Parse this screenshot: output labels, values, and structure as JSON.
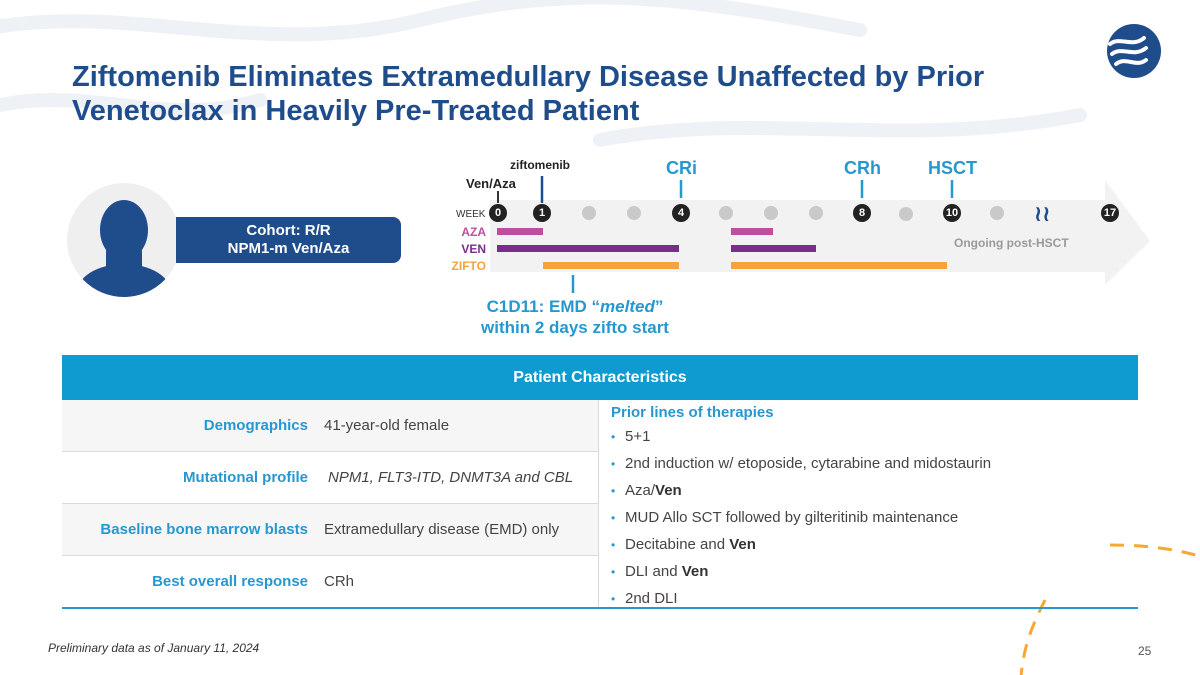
{
  "slide": {
    "title": "Ziftomenib Eliminates Extramedullary Disease Unaffected by Prior Venetoclax in Heavily Pre-Treated Patient",
    "cohort_line1": "Cohort: R/R",
    "cohort_line2": "NPM1-m Ven/Aza",
    "footnote": "Preliminary data as of January 11, 2024",
    "page_number": "25"
  },
  "timeline": {
    "week_label": "WEEK",
    "weeks": [
      "0",
      "1",
      "4",
      "8",
      "10",
      "17"
    ],
    "events": {
      "ziftomenib": "ziftomenib",
      "ven_aza": "Ven/Aza",
      "cri": "CRi",
      "crh": "CRh",
      "hsct": "HSCT"
    },
    "drugs": {
      "aza": "AZA",
      "ven": "VEN",
      "zifto": "ZIFTO"
    },
    "ongoing": "Ongoing post-HSCT",
    "emd_line1_prefix": "C1D11: EMD “",
    "emd_line1_em": "melted",
    "emd_line1_suffix": "”",
    "emd_line2": "within 2 days zifto start",
    "colors": {
      "aza": "#c04e9f",
      "ven": "#7b2d8e",
      "zifto": "#f5a33a",
      "accent": "#2798cf",
      "title": "#1f4d8c"
    }
  },
  "table": {
    "header": "Patient Characteristics",
    "rows": [
      {
        "key": "Demographics",
        "value": "41-year-old female"
      },
      {
        "key": "Mutational profile",
        "value": "NPM1, FLT3-ITD, DNMT3A and CBL"
      },
      {
        "key": "Baseline bone marrow blasts",
        "value": "Extramedullary disease (EMD) only"
      },
      {
        "key": "Best overall response",
        "value": "CRh"
      }
    ],
    "prior_title": "Prior lines of therapies",
    "prior": [
      {
        "text": "5+1",
        "bold": ""
      },
      {
        "text": "2nd induction w/ etoposide, cytarabine and midostaurin",
        "bold": ""
      },
      {
        "text": "Aza/",
        "bold": "Ven"
      },
      {
        "text": "MUD Allo SCT followed by gilteritinib maintenance",
        "bold": ""
      },
      {
        "text": "Decitabine and ",
        "bold": "Ven"
      },
      {
        "text": "DLI and ",
        "bold": "Ven"
      },
      {
        "text": "2nd DLI",
        "bold": ""
      }
    ]
  }
}
